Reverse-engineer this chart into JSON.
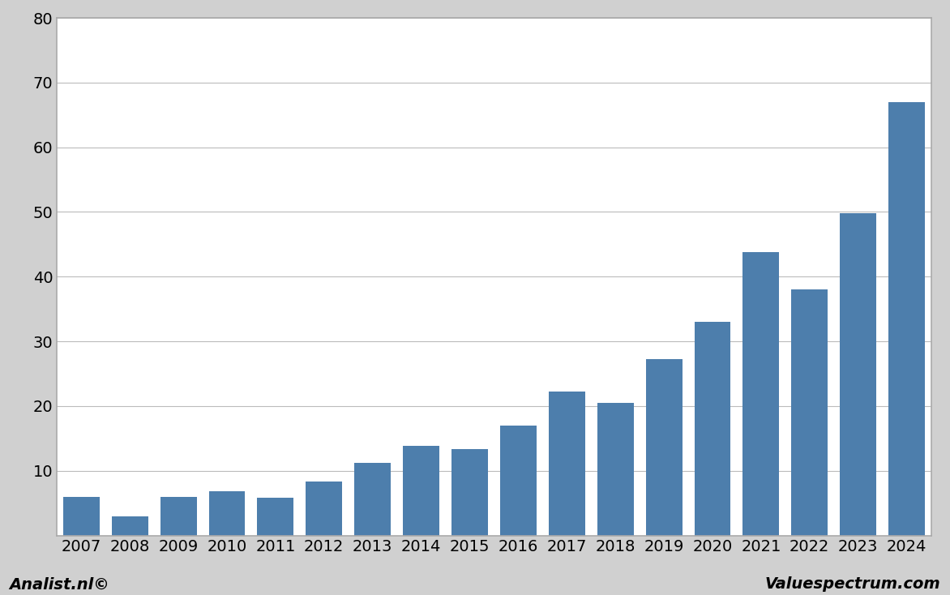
{
  "years": [
    2007,
    2008,
    2009,
    2010,
    2011,
    2012,
    2013,
    2014,
    2015,
    2016,
    2017,
    2018,
    2019,
    2020,
    2021,
    2022,
    2023,
    2024
  ],
  "values": [
    6.0,
    3.0,
    6.0,
    6.8,
    5.8,
    8.3,
    11.2,
    13.8,
    13.3,
    17.0,
    22.2,
    20.5,
    27.3,
    33.0,
    43.8,
    38.0,
    49.8,
    67.0
  ],
  "bar_color": "#4d7eac",
  "background_color": "#d0d0d0",
  "plot_background_color": "#ffffff",
  "ylim": [
    0,
    80
  ],
  "yticks": [
    0,
    10,
    20,
    30,
    40,
    50,
    60,
    70,
    80
  ],
  "grid_color": "#bbbbbb",
  "footer_left": "Analist.nl©",
  "footer_right": "Valuespectrum.com",
  "footer_fontsize": 14,
  "tick_fontsize": 14,
  "bar_width": 0.75
}
